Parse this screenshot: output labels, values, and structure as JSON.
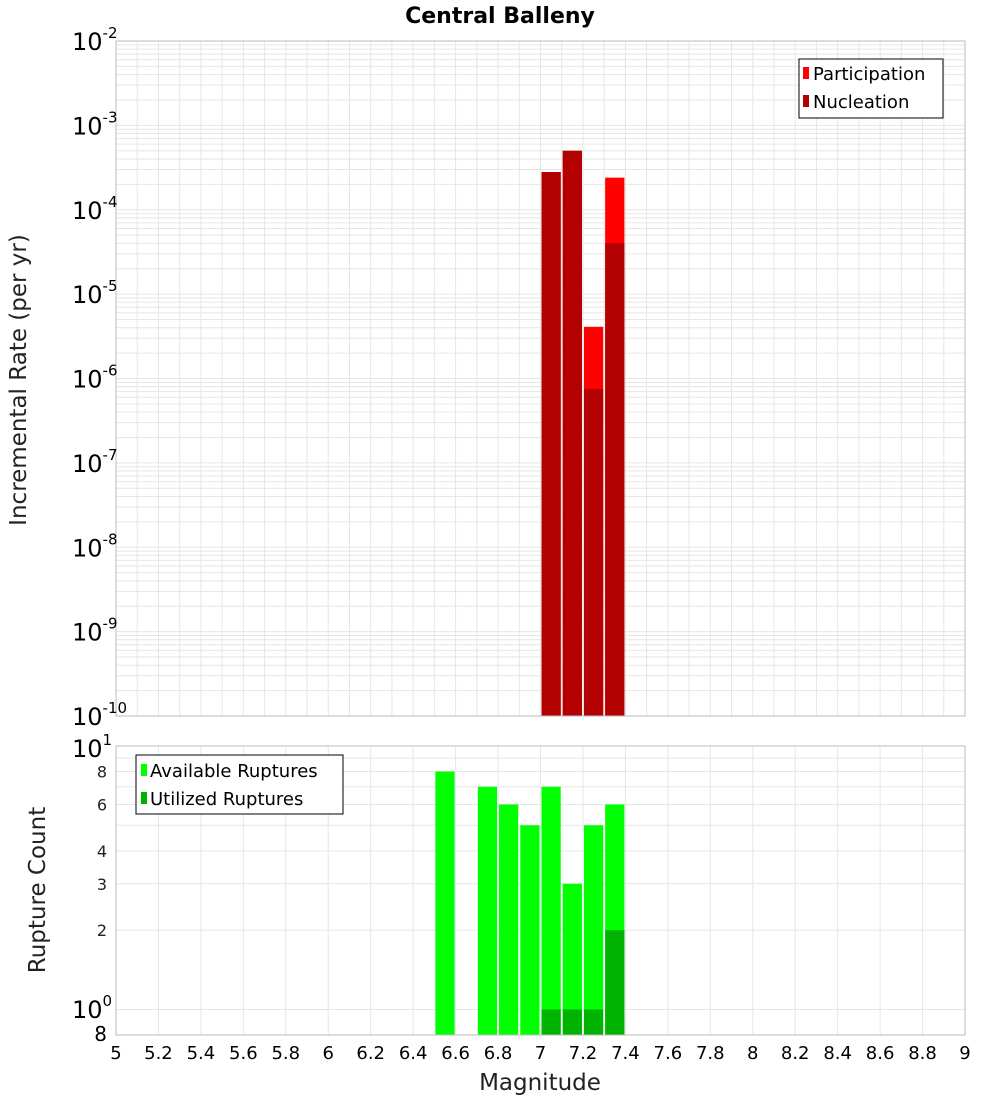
{
  "chart_data": [
    {
      "type": "bar",
      "title": "Central Balleny",
      "xlabel": "",
      "ylabel": "Incremental Rate (per yr)",
      "y_scale": "log",
      "ylim_exponents": [
        -10,
        -2
      ],
      "xlim": [
        5,
        9
      ],
      "bar_width": 0.1,
      "grid": true,
      "legend_position": "top-right",
      "series": [
        {
          "name": "Participation",
          "color": "#ff0000",
          "x": [
            7.05,
            7.15,
            7.25,
            7.35
          ],
          "values": [
            0.00028,
            0.0005,
            4.1e-06,
            0.00024
          ]
        },
        {
          "name": "Nucleation",
          "color": "#b30000",
          "x": [
            7.05,
            7.15,
            7.25,
            7.35
          ],
          "values": [
            0.00028,
            0.0005,
            7.5e-07,
            4e-05
          ]
        }
      ],
      "y_tick_exponents": [
        "-2",
        "-3",
        "-4",
        "-5",
        "-6",
        "-7",
        "-8",
        "-9",
        "-10"
      ]
    },
    {
      "type": "bar",
      "title": "",
      "xlabel": "Magnitude",
      "ylabel": "Rupture Count",
      "y_scale": "log",
      "ylim": [
        0.8,
        10
      ],
      "xlim": [
        5,
        9
      ],
      "bar_width": 0.1,
      "grid": true,
      "legend_position": "top-left",
      "series": [
        {
          "name": "Available Ruptures",
          "color": "#00ff00",
          "x": [
            6.55,
            6.75,
            6.85,
            6.95,
            7.05,
            7.15,
            7.25,
            7.35
          ],
          "values": [
            8,
            7,
            6,
            5,
            7,
            3,
            5,
            6
          ]
        },
        {
          "name": "Utilized Ruptures",
          "color": "#00b300",
          "x": [
            7.05,
            7.15,
            7.25,
            7.35
          ],
          "values": [
            1,
            1,
            1,
            2
          ]
        }
      ],
      "y_tick_labels": [
        {
          "value": 8,
          "text": "8"
        },
        {
          "value": 6,
          "text": "6"
        },
        {
          "value": 4,
          "text": "4"
        },
        {
          "value": 3,
          "text": "3"
        },
        {
          "value": 2,
          "text": "2"
        }
      ],
      "y_edge_labels": {
        "top_base": "10",
        "top_exp": "1",
        "mid_base": "10",
        "mid_exp": "0",
        "bottom": "8"
      },
      "x_tick_labels": [
        "5",
        "5.2",
        "5.4",
        "5.6",
        "5.8",
        "6",
        "6.2",
        "6.4",
        "6.6",
        "6.8",
        "7",
        "7.2",
        "7.4",
        "7.6",
        "7.8",
        "8",
        "8.2",
        "8.4",
        "8.6",
        "8.8",
        "9"
      ]
    }
  ],
  "colors": {
    "participation": "#ff0000",
    "nucleation": "#b30000",
    "available": "#00ff00",
    "utilized": "#00b300",
    "grid": "#e6e6e6",
    "frame": "#bbbbbb"
  }
}
